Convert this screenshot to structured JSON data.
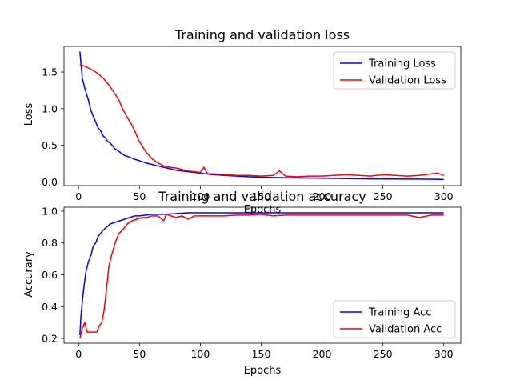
{
  "colors": {
    "background": "#ffffff",
    "axes": "#000000",
    "training": "#0000ff",
    "validation": "#ff0000"
  },
  "chart_data": [
    {
      "type": "line",
      "title": "Training and validation loss",
      "xlabel": "Epochs",
      "ylabel": "Loss",
      "xlim": [
        -12,
        314
      ],
      "ylim": [
        -0.05,
        1.85
      ],
      "xticks": [
        0,
        50,
        100,
        150,
        200,
        250,
        300
      ],
      "yticks": [
        0.0,
        0.5,
        1.0,
        1.5
      ],
      "ytick_labels": [
        "0.0",
        "0.5",
        "1.0",
        "1.5"
      ],
      "grid": false,
      "legend_position": "top-right",
      "series": [
        {
          "name": "Training Loss",
          "color": "#0000ff",
          "points": [
            [
              1,
              1.78
            ],
            [
              3,
              1.42
            ],
            [
              5,
              1.28
            ],
            [
              8,
              1.12
            ],
            [
              10,
              0.98
            ],
            [
              13,
              0.86
            ],
            [
              16,
              0.74
            ],
            [
              18,
              0.7
            ],
            [
              20,
              0.63
            ],
            [
              22,
              0.6
            ],
            [
              24,
              0.55
            ],
            [
              26,
              0.53
            ],
            [
              28,
              0.49
            ],
            [
              30,
              0.45
            ],
            [
              33,
              0.42
            ],
            [
              35,
              0.39
            ],
            [
              38,
              0.36
            ],
            [
              40,
              0.35
            ],
            [
              43,
              0.33
            ],
            [
              46,
              0.31
            ],
            [
              50,
              0.29
            ],
            [
              55,
              0.26
            ],
            [
              60,
              0.24
            ],
            [
              65,
              0.22
            ],
            [
              70,
              0.2
            ],
            [
              75,
              0.18
            ],
            [
              80,
              0.16
            ],
            [
              90,
              0.14
            ],
            [
              100,
              0.12
            ],
            [
              110,
              0.1
            ],
            [
              120,
              0.09
            ],
            [
              130,
              0.08
            ],
            [
              140,
              0.07
            ],
            [
              150,
              0.065
            ],
            [
              160,
              0.06
            ],
            [
              180,
              0.055
            ],
            [
              200,
              0.05
            ],
            [
              220,
              0.045
            ],
            [
              240,
              0.042
            ],
            [
              260,
              0.04
            ],
            [
              280,
              0.038
            ],
            [
              300,
              0.035
            ]
          ]
        },
        {
          "name": "Validation Loss",
          "color": "#ff0000",
          "points": [
            [
              1,
              1.6
            ],
            [
              5,
              1.58
            ],
            [
              10,
              1.54
            ],
            [
              15,
              1.49
            ],
            [
              20,
              1.42
            ],
            [
              25,
              1.32
            ],
            [
              30,
              1.2
            ],
            [
              33,
              1.12
            ],
            [
              36,
              1.0
            ],
            [
              40,
              0.88
            ],
            [
              43,
              0.8
            ],
            [
              46,
              0.7
            ],
            [
              50,
              0.55
            ],
            [
              55,
              0.42
            ],
            [
              60,
              0.32
            ],
            [
              65,
              0.26
            ],
            [
              70,
              0.22
            ],
            [
              75,
              0.2
            ],
            [
              80,
              0.19
            ],
            [
              85,
              0.17
            ],
            [
              90,
              0.15
            ],
            [
              100,
              0.13
            ],
            [
              103,
              0.2
            ],
            [
              106,
              0.11
            ],
            [
              110,
              0.11
            ],
            [
              120,
              0.1
            ],
            [
              130,
              0.09
            ],
            [
              140,
              0.09
            ],
            [
              150,
              0.08
            ],
            [
              160,
              0.09
            ],
            [
              165,
              0.15
            ],
            [
              170,
              0.08
            ],
            [
              180,
              0.07
            ],
            [
              190,
              0.08
            ],
            [
              200,
              0.08
            ],
            [
              210,
              0.09
            ],
            [
              220,
              0.1
            ],
            [
              230,
              0.09
            ],
            [
              240,
              0.08
            ],
            [
              250,
              0.1
            ],
            [
              260,
              0.09
            ],
            [
              270,
              0.08
            ],
            [
              280,
              0.09
            ],
            [
              290,
              0.11
            ],
            [
              295,
              0.12
            ],
            [
              300,
              0.09
            ]
          ]
        }
      ]
    },
    {
      "type": "line",
      "title": "Training and validation accuracy",
      "xlabel": "Epochs",
      "ylabel": "Accurary",
      "xlim": [
        -12,
        314
      ],
      "ylim": [
        0.17,
        1.025
      ],
      "xticks": [
        0,
        50,
        100,
        150,
        200,
        250,
        300
      ],
      "yticks": [
        0.2,
        0.4,
        0.6,
        0.8,
        1.0
      ],
      "ytick_labels": [
        "0.2",
        "0.4",
        "0.6",
        "0.8",
        "1.0"
      ],
      "grid": false,
      "legend_position": "bottom-right",
      "series": [
        {
          "name": "Training Acc",
          "color": "#0000ff",
          "points": [
            [
              1,
              0.22
            ],
            [
              2,
              0.35
            ],
            [
              4,
              0.5
            ],
            [
              6,
              0.62
            ],
            [
              8,
              0.68
            ],
            [
              10,
              0.72
            ],
            [
              12,
              0.78
            ],
            [
              14,
              0.8
            ],
            [
              16,
              0.84
            ],
            [
              18,
              0.86
            ],
            [
              20,
              0.88
            ],
            [
              23,
              0.9
            ],
            [
              26,
              0.92
            ],
            [
              30,
              0.93
            ],
            [
              34,
              0.94
            ],
            [
              38,
              0.95
            ],
            [
              42,
              0.96
            ],
            [
              46,
              0.97
            ],
            [
              50,
              0.97
            ],
            [
              60,
              0.98
            ],
            [
              70,
              0.98
            ],
            [
              80,
              0.985
            ],
            [
              90,
              0.99
            ],
            [
              100,
              0.99
            ],
            [
              120,
              0.99
            ],
            [
              140,
              0.99
            ],
            [
              160,
              0.99
            ],
            [
              180,
              0.99
            ],
            [
              200,
              0.99
            ],
            [
              220,
              0.99
            ],
            [
              240,
              0.99
            ],
            [
              260,
              0.99
            ],
            [
              280,
              0.99
            ],
            [
              300,
              0.99
            ]
          ]
        },
        {
          "name": "Validation Acc",
          "color": "#ff0000",
          "points": [
            [
              1,
              0.2
            ],
            [
              3,
              0.26
            ],
            [
              5,
              0.3
            ],
            [
              7,
              0.24
            ],
            [
              9,
              0.24
            ],
            [
              11,
              0.24
            ],
            [
              13,
              0.24
            ],
            [
              15,
              0.24
            ],
            [
              17,
              0.28
            ],
            [
              19,
              0.3
            ],
            [
              21,
              0.38
            ],
            [
              23,
              0.52
            ],
            [
              25,
              0.66
            ],
            [
              27,
              0.72
            ],
            [
              30,
              0.8
            ],
            [
              33,
              0.86
            ],
            [
              36,
              0.88
            ],
            [
              40,
              0.92
            ],
            [
              44,
              0.94
            ],
            [
              48,
              0.95
            ],
            [
              52,
              0.96
            ],
            [
              56,
              0.96
            ],
            [
              60,
              0.97
            ],
            [
              65,
              0.97
            ],
            [
              70,
              0.94
            ],
            [
              72,
              0.98
            ],
            [
              76,
              0.97
            ],
            [
              80,
              0.96
            ],
            [
              85,
              0.97
            ],
            [
              90,
              0.95
            ],
            [
              95,
              0.97
            ],
            [
              100,
              0.97
            ],
            [
              110,
              0.97
            ],
            [
              120,
              0.97
            ],
            [
              130,
              0.975
            ],
            [
              140,
              0.975
            ],
            [
              150,
              0.98
            ],
            [
              160,
              0.97
            ],
            [
              170,
              0.975
            ],
            [
              180,
              0.975
            ],
            [
              190,
              0.975
            ],
            [
              200,
              0.975
            ],
            [
              210,
              0.975
            ],
            [
              220,
              0.975
            ],
            [
              230,
              0.975
            ],
            [
              240,
              0.975
            ],
            [
              250,
              0.975
            ],
            [
              260,
              0.975
            ],
            [
              270,
              0.975
            ],
            [
              280,
              0.96
            ],
            [
              290,
              0.975
            ],
            [
              300,
              0.975
            ]
          ]
        }
      ]
    }
  ]
}
